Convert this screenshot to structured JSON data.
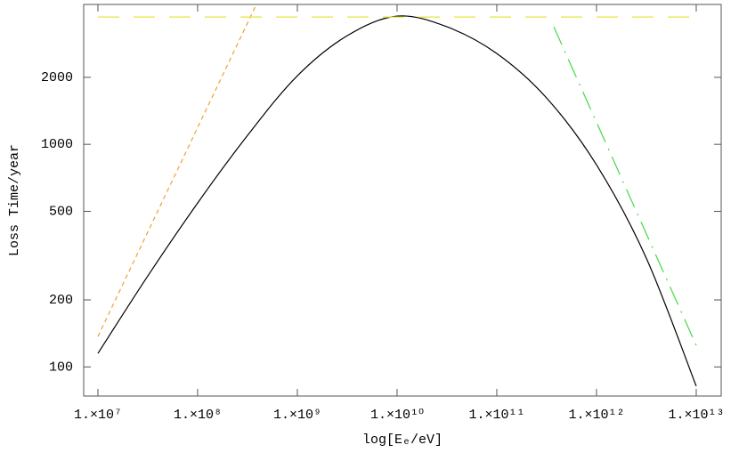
{
  "chart_data": {
    "type": "line",
    "x_label": "log[Eₑ/eV]",
    "y_label": "Loss Time/year",
    "x_log": true,
    "y_log": true,
    "xlim": [
      7200000,
      17800000000000
    ],
    "ylim": [
      74,
      4250
    ],
    "xticks": [
      {
        "value": 10000000,
        "label": "1.×10⁷"
      },
      {
        "value": 100000000,
        "label": "1.×10⁸"
      },
      {
        "value": 1000000000,
        "label": "1.×10⁹"
      },
      {
        "value": 10000000000,
        "label": "1.×10¹⁰"
      },
      {
        "value": 100000000000,
        "label": "1.×10¹¹"
      },
      {
        "value": 1000000000000,
        "label": "1.×10¹²"
      },
      {
        "value": 10000000000000,
        "label": "1.×10¹³"
      }
    ],
    "yticks": [
      100,
      200,
      500,
      1000,
      2000
    ],
    "series": [
      {
        "color": "#000000",
        "dash": "solid",
        "x": [
          10000000,
          31600000,
          100000000,
          316000000,
          1000000000,
          3160000000,
          10000000000,
          31600000000,
          100000000000,
          316000000000,
          1000000000000,
          3160000000000,
          10000000000000
        ],
        "values": [
          115,
          256,
          545,
          1096,
          2032,
          3076,
          3767,
          3373,
          2559,
          1615,
          809,
          308,
          82
        ]
      },
      {
        "color": "#f0a030",
        "dash": "dashed",
        "x": [
          10000000,
          388000000
        ],
        "values": [
          137,
          4246
        ]
      },
      {
        "color": "#e6e640",
        "dash": "longdash",
        "x": [
          10000000,
          10000000000000
        ],
        "values": [
          3733,
          3733
        ]
      },
      {
        "color": "#44d844",
        "dash": "dashdot",
        "x": [
          373000000000,
          10000000000000
        ],
        "values": [
          3373,
          125
        ]
      }
    ]
  }
}
